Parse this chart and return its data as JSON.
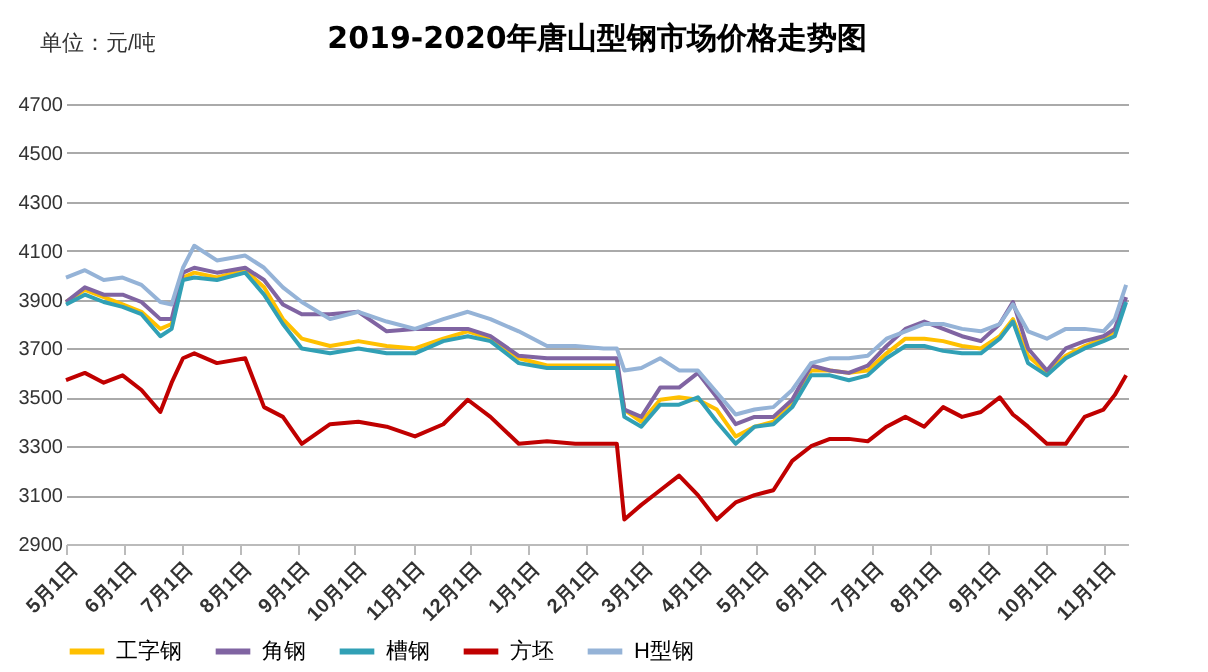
{
  "chart_data": {
    "type": "line",
    "title": "2019-2020年唐山型钢市场价格走势图",
    "annotations": [
      "单位：元/吨"
    ],
    "x": [
      "2019-05-01",
      "2019-05-11",
      "2019-05-21",
      "2019-05-31",
      "2019-06-10",
      "2019-06-20",
      "2019-06-26",
      "2019-07-02",
      "2019-07-08",
      "2019-07-20",
      "2019-08-04",
      "2019-08-14",
      "2019-08-24",
      "2019-09-03",
      "2019-09-18",
      "2019-10-03",
      "2019-10-18",
      "2019-11-02",
      "2019-11-17",
      "2019-11-30",
      "2019-12-12",
      "2019-12-27",
      "2020-01-11",
      "2020-01-26",
      "2020-02-10",
      "2020-02-17",
      "2020-02-21",
      "2020-03-01",
      "2020-03-11",
      "2020-03-21",
      "2020-03-31",
      "2020-04-10",
      "2020-04-20",
      "2020-04-30",
      "2020-05-10",
      "2020-05-20",
      "2020-05-30",
      "2020-06-09",
      "2020-06-19",
      "2020-06-29",
      "2020-07-09",
      "2020-07-19",
      "2020-07-29",
      "2020-08-08",
      "2020-08-18",
      "2020-08-28",
      "2020-09-07",
      "2020-09-14",
      "2020-09-22",
      "2020-10-02",
      "2020-10-12",
      "2020-10-22",
      "2020-11-01",
      "2020-11-07",
      "2020-11-13"
    ],
    "series": [
      {
        "name": "工字钢",
        "color": "#ffc000",
        "values": [
          3890,
          3940,
          3910,
          3880,
          3850,
          3780,
          3800,
          3990,
          4010,
          3990,
          4020,
          3950,
          3820,
          3740,
          3710,
          3730,
          3710,
          3700,
          3740,
          3770,
          3740,
          3660,
          3630,
          3630,
          3630,
          3630,
          3450,
          3400,
          3490,
          3500,
          3490,
          3450,
          3340,
          3380,
          3400,
          3470,
          3610,
          3610,
          3600,
          3610,
          3680,
          3740,
          3740,
          3730,
          3710,
          3700,
          3750,
          3820,
          3670,
          3600,
          3670,
          3710,
          3740,
          3770,
          null
        ]
      },
      {
        "name": "角钢",
        "color": "#8064a2",
        "values": [
          3890,
          3950,
          3920,
          3920,
          3890,
          3820,
          3820,
          4010,
          4030,
          4010,
          4030,
          3980,
          3880,
          3840,
          3840,
          3850,
          3770,
          3780,
          3780,
          3780,
          3750,
          3670,
          3660,
          3660,
          3660,
          3660,
          3450,
          3420,
          3540,
          3540,
          3600,
          3500,
          3390,
          3420,
          3420,
          3490,
          3630,
          3610,
          3600,
          3630,
          3710,
          3780,
          3810,
          3780,
          3750,
          3730,
          3800,
          3890,
          3700,
          3610,
          3700,
          3730,
          3750,
          3780,
          3910
        ]
      },
      {
        "name": "槽钢",
        "color": "#31a0b5",
        "values": [
          3880,
          3920,
          3890,
          3870,
          3840,
          3750,
          3780,
          3980,
          3990,
          3980,
          4010,
          3920,
          3800,
          3700,
          3680,
          3700,
          3680,
          3680,
          3730,
          3750,
          3730,
          3640,
          3620,
          3620,
          3620,
          3620,
          3420,
          3380,
          3470,
          3470,
          3500,
          3400,
          3310,
          3380,
          3390,
          3460,
          3590,
          3590,
          3570,
          3590,
          3660,
          3710,
          3710,
          3690,
          3680,
          3680,
          3740,
          3810,
          3640,
          3590,
          3660,
          3700,
          3730,
          3750,
          3890
        ]
      },
      {
        "name": "方坯",
        "color": "#c00000",
        "values": [
          3570,
          3600,
          3560,
          3590,
          3530,
          3440,
          3560,
          3660,
          3680,
          3640,
          3660,
          3460,
          3420,
          3310,
          3390,
          3400,
          3380,
          3340,
          3390,
          3490,
          3420,
          3310,
          3320,
          3310,
          3310,
          3310,
          3000,
          3060,
          3120,
          3180,
          3100,
          3000,
          3070,
          3100,
          3120,
          3240,
          3300,
          3330,
          3330,
          3320,
          3380,
          3420,
          3380,
          3460,
          3420,
          3440,
          3500,
          3430,
          3380,
          3310,
          3310,
          3420,
          3450,
          3510,
          3590
        ]
      },
      {
        "name": "H型钢",
        "color": "#95b3d7",
        "values": [
          3990,
          4020,
          3980,
          3990,
          3960,
          3890,
          3880,
          4030,
          4120,
          4060,
          4080,
          4030,
          3950,
          3890,
          3820,
          3850,
          3810,
          3780,
          3820,
          3850,
          3820,
          3770,
          3710,
          3710,
          3700,
          3700,
          3610,
          3620,
          3660,
          3610,
          3610,
          3520,
          3430,
          3450,
          3460,
          3530,
          3640,
          3660,
          3660,
          3670,
          3740,
          3770,
          3800,
          3800,
          3780,
          3770,
          3800,
          3880,
          3770,
          3740,
          3780,
          3780,
          3770,
          3820,
          3960
        ]
      }
    ],
    "xlim": [
      "2019-05-01",
      "2020-11-14"
    ],
    "xticks": [
      {
        "value": "2019-05-01",
        "label": "5月1日"
      },
      {
        "value": "2019-06-01",
        "label": "6月1日"
      },
      {
        "value": "2019-07-01",
        "label": "7月1日"
      },
      {
        "value": "2019-08-01",
        "label": "8月1日"
      },
      {
        "value": "2019-09-01",
        "label": "9月1日"
      },
      {
        "value": "2019-10-01",
        "label": "10月1日"
      },
      {
        "value": "2019-11-01",
        "label": "11月1日"
      },
      {
        "value": "2019-12-01",
        "label": "12月1日"
      },
      {
        "value": "2020-01-01",
        "label": "1月1日"
      },
      {
        "value": "2020-02-01",
        "label": "2月1日"
      },
      {
        "value": "2020-03-01",
        "label": "3月1日"
      },
      {
        "value": "2020-04-01",
        "label": "4月1日"
      },
      {
        "value": "2020-05-01",
        "label": "5月1日"
      },
      {
        "value": "2020-06-01",
        "label": "6月1日"
      },
      {
        "value": "2020-07-01",
        "label": "7月1日"
      },
      {
        "value": "2020-08-01",
        "label": "8月1日"
      },
      {
        "value": "2020-09-01",
        "label": "9月1日"
      },
      {
        "value": "2020-10-01",
        "label": "10月1日"
      },
      {
        "value": "2020-11-01",
        "label": "11月1日"
      }
    ],
    "ylim": [
      2900,
      4700
    ],
    "yticks": [
      2900,
      3100,
      3300,
      3500,
      3700,
      3900,
      4100,
      4300,
      4500,
      4700
    ],
    "grid": "y",
    "legend": "bottom",
    "line_style": "solid"
  }
}
